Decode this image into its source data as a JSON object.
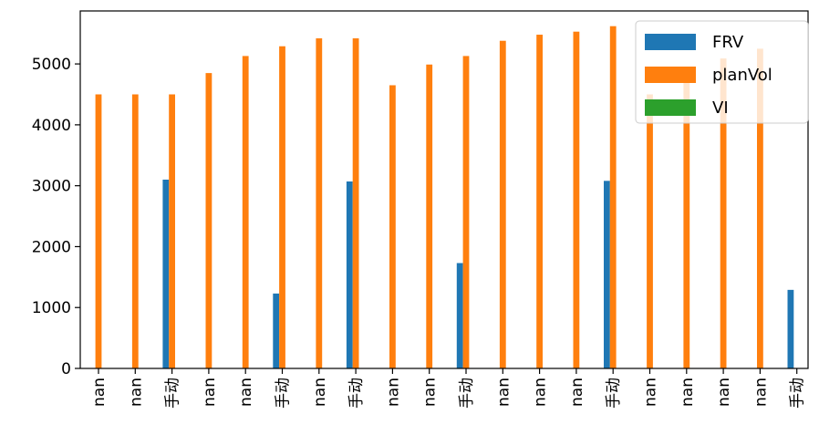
{
  "chart_data": {
    "type": "bar",
    "title": "",
    "xlabel": "",
    "ylabel": "",
    "ylim": [
      0,
      5870
    ],
    "yticks": [
      0,
      1000,
      2000,
      3000,
      4000,
      5000
    ],
    "categories": [
      "nan",
      "nan",
      "手动",
      "nan",
      "nan",
      "手动",
      "nan",
      "手动",
      "nan",
      "nan",
      "手动",
      "nan",
      "nan",
      "nan",
      "手动",
      "nan",
      "nan",
      "nan",
      "nan",
      "手动"
    ],
    "series": [
      {
        "name": "FRV",
        "color": "#1f77b4",
        "values": [
          null,
          null,
          3100,
          null,
          null,
          1230,
          null,
          3070,
          null,
          null,
          1730,
          null,
          null,
          null,
          3080,
          null,
          null,
          null,
          null,
          1290
        ]
      },
      {
        "name": "planVol",
        "color": "#ff7f0e",
        "values": [
          4500,
          4500,
          4500,
          4850,
          5130,
          5290,
          5420,
          5420,
          4650,
          4990,
          5130,
          5380,
          5480,
          5530,
          5620,
          4500,
          4820,
          5090,
          5250,
          null
        ]
      },
      {
        "name": "VI",
        "color": "#2ca02c",
        "values": [
          null,
          null,
          null,
          null,
          null,
          null,
          null,
          null,
          null,
          null,
          null,
          null,
          null,
          null,
          null,
          null,
          null,
          null,
          null,
          null
        ]
      }
    ],
    "legend_position": "top-right",
    "grid": false
  }
}
